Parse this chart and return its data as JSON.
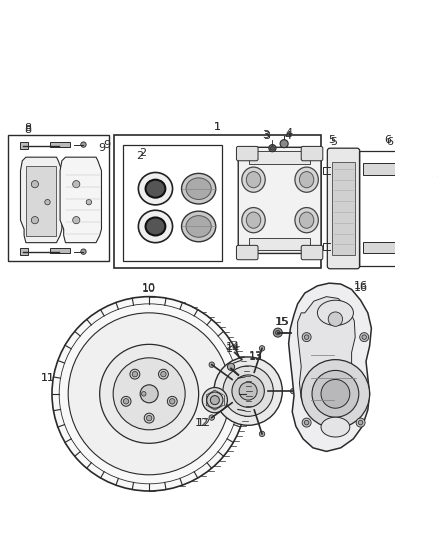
{
  "background_color": "#ffffff",
  "line_color": "#2a2a2a",
  "fig_width": 4.38,
  "fig_height": 5.33,
  "dpi": 100
}
